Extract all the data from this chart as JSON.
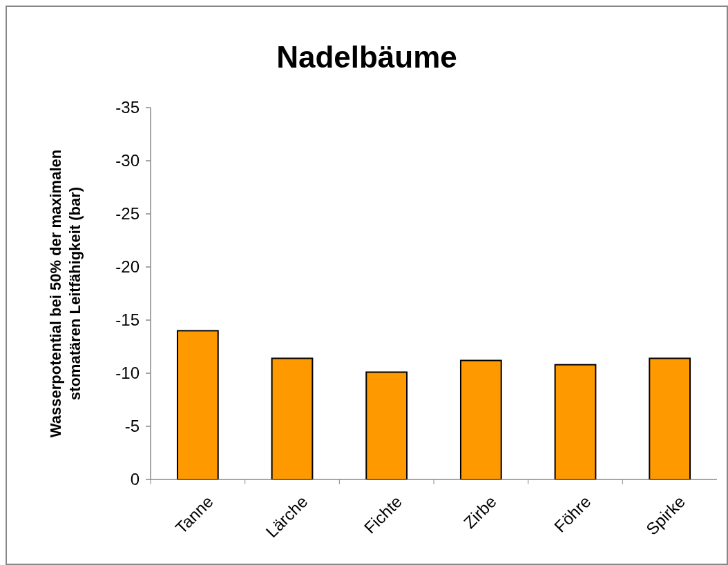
{
  "chart_data": {
    "type": "bar",
    "title": "Nadelbäume",
    "ylabel": "Wasserpotential bei 50% der maximalen\nstomatären Leitfähigkeit (bar)",
    "categories": [
      "Tanne",
      "Lärche",
      "Fichte",
      "Zirbe",
      "Föhre",
      "Spirke"
    ],
    "values": [
      -14.0,
      -11.4,
      -10.1,
      -11.2,
      -10.8,
      -11.4
    ],
    "color": "#ff9900",
    "ylim": [
      0,
      -35
    ],
    "yticks": [
      0,
      -5,
      -10,
      -15,
      -20,
      -25,
      -30,
      -35
    ],
    "grid": false
  }
}
